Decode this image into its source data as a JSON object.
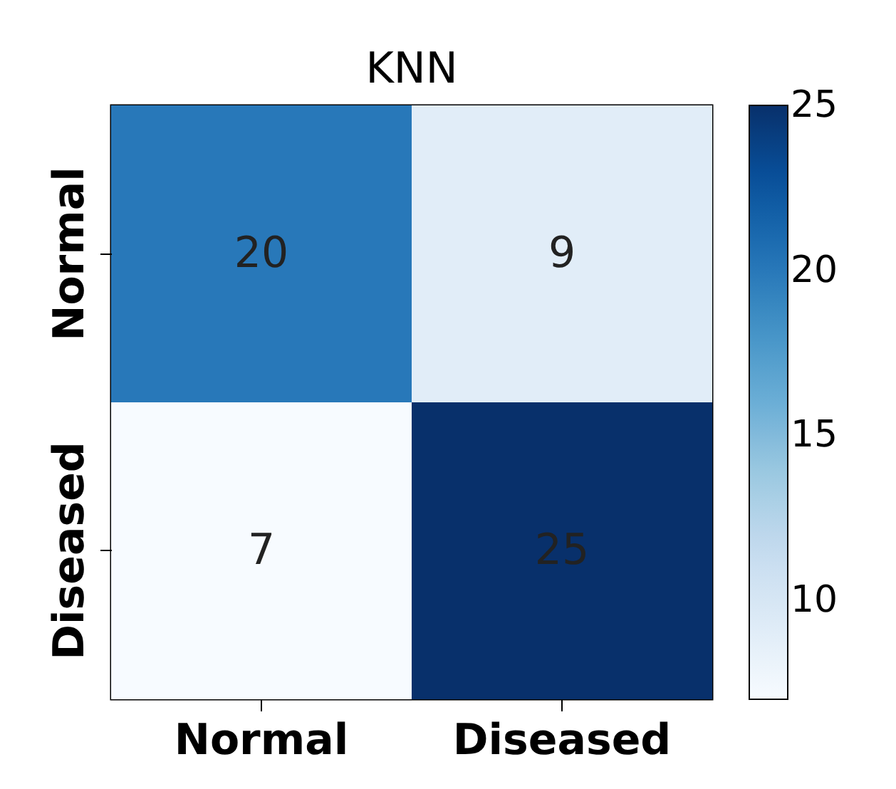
{
  "chart_data": {
    "type": "heatmap",
    "title": "KNN",
    "categories": [
      "Normal",
      "Diseased"
    ],
    "y_categories": [
      "Normal",
      "Diseased"
    ],
    "cells": [
      [
        20,
        9
      ],
      [
        7,
        25
      ]
    ],
    "data_labels": true,
    "clim": [
      7,
      25
    ],
    "cticks": [
      10,
      15,
      20,
      25
    ]
  }
}
